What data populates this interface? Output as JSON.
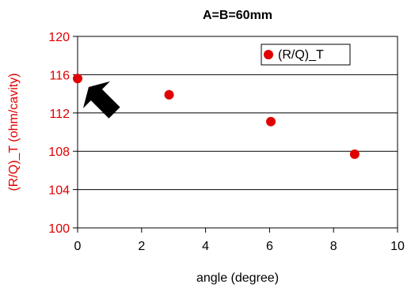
{
  "chart_data": {
    "type": "scatter",
    "title": "A=B=60mm",
    "xlabel": "angle (degree)",
    "ylabel": "(R/Q)_T (ohm/cavity)",
    "xlim": [
      0,
      10
    ],
    "ylim": [
      100,
      120
    ],
    "xticks": [
      "0",
      "2",
      "4",
      "6",
      "8",
      "10"
    ],
    "yticks": [
      "100",
      "104",
      "108",
      "112",
      "116",
      "120"
    ],
    "grid": "horizontal",
    "legend_position": "top-right",
    "series": [
      {
        "name": "(R/Q)_T",
        "color": "#e00000",
        "x": [
          0.0,
          2.86,
          6.04,
          8.66
        ],
        "y": [
          115.6,
          113.9,
          111.1,
          107.7
        ]
      }
    ],
    "annotations": [
      {
        "type": "arrow",
        "icon": "arrow-icon",
        "points_to_x": 0.0,
        "points_to_y": 115.6,
        "color": "#000000"
      }
    ]
  }
}
